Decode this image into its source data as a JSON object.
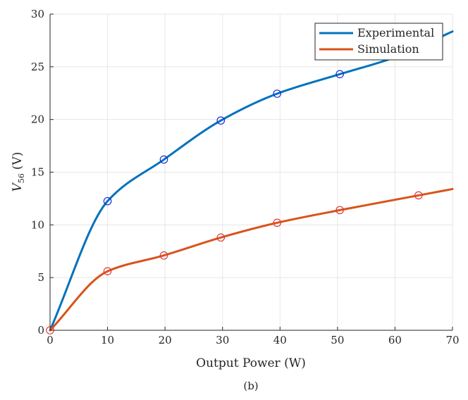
{
  "chart_data": {
    "type": "line",
    "xlabel": "Output Power (W)",
    "ylabel_main": "V",
    "ylabel_sub": "56",
    "ylabel_unit": "(V)",
    "caption": "(b)",
    "xlim": [
      0,
      70
    ],
    "ylim": [
      0,
      30
    ],
    "xticks": [
      0,
      10,
      20,
      30,
      40,
      50,
      60,
      70
    ],
    "yticks": [
      0,
      5,
      10,
      15,
      20,
      25,
      30
    ],
    "grid": true,
    "legend_position": "top-right",
    "series": [
      {
        "name": "Experimental",
        "color": "#0072BD",
        "marker_color": "#1F2BD8",
        "x": [
          0,
          10,
          19.8,
          29.7,
          39.5,
          50.4,
          60,
          70
        ],
        "y": [
          0,
          12.25,
          16.2,
          19.9,
          22.45,
          24.3,
          25.9,
          28.35
        ],
        "marker_x": [
          10,
          19.8,
          29.7,
          39.5,
          50.4
        ],
        "marker_y": [
          12.25,
          16.2,
          19.9,
          22.45,
          24.3
        ]
      },
      {
        "name": "Simulation",
        "color": "#D95319",
        "marker_color": "#E23B3B",
        "x": [
          0,
          10,
          19.8,
          29.7,
          39.5,
          50.4,
          64.1,
          70
        ],
        "y": [
          0,
          5.6,
          7.1,
          8.8,
          10.2,
          11.4,
          12.8,
          13.4
        ],
        "marker_x": [
          0,
          10,
          19.8,
          29.7,
          39.5,
          50.4,
          64.1
        ],
        "marker_y": [
          0,
          5.6,
          7.1,
          8.8,
          10.2,
          11.4,
          12.8
        ]
      }
    ]
  }
}
